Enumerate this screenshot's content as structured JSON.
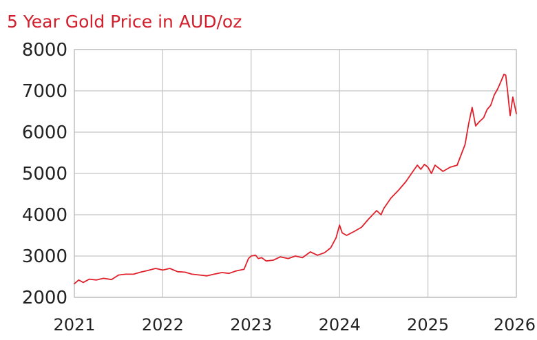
{
  "chart_data": {
    "type": "line",
    "title": "5 Year Gold Price in AUD/oz",
    "title_color": "#d21f2b",
    "line_color": "#e0202a",
    "xlabel": "",
    "ylabel": "",
    "xlim": [
      2021,
      2026
    ],
    "ylim": [
      2000,
      8000
    ],
    "x_ticks": [
      "2021",
      "2022",
      "2023",
      "2024",
      "2025",
      "2026"
    ],
    "y_ticks": [
      "2000",
      "3000",
      "4000",
      "5000",
      "6000",
      "7000",
      "8000"
    ],
    "grid": true,
    "legend": "none",
    "series": [
      {
        "points": [
          [
            2021.0,
            2330
          ],
          [
            2021.05,
            2420
          ],
          [
            2021.1,
            2360
          ],
          [
            2021.17,
            2440
          ],
          [
            2021.25,
            2420
          ],
          [
            2021.33,
            2460
          ],
          [
            2021.42,
            2430
          ],
          [
            2021.5,
            2540
          ],
          [
            2021.58,
            2560
          ],
          [
            2021.67,
            2560
          ],
          [
            2021.75,
            2610
          ],
          [
            2021.83,
            2650
          ],
          [
            2021.92,
            2700
          ],
          [
            2022.0,
            2660
          ],
          [
            2022.08,
            2700
          ],
          [
            2022.17,
            2620
          ],
          [
            2022.25,
            2610
          ],
          [
            2022.33,
            2560
          ],
          [
            2022.42,
            2540
          ],
          [
            2022.5,
            2520
          ],
          [
            2022.58,
            2560
          ],
          [
            2022.67,
            2600
          ],
          [
            2022.75,
            2580
          ],
          [
            2022.83,
            2640
          ],
          [
            2022.92,
            2680
          ],
          [
            2022.97,
            2940
          ],
          [
            2023.0,
            3000
          ],
          [
            2023.05,
            3020
          ],
          [
            2023.08,
            2940
          ],
          [
            2023.12,
            2960
          ],
          [
            2023.17,
            2880
          ],
          [
            2023.25,
            2900
          ],
          [
            2023.33,
            2980
          ],
          [
            2023.42,
            2940
          ],
          [
            2023.5,
            3000
          ],
          [
            2023.58,
            2960
          ],
          [
            2023.67,
            3100
          ],
          [
            2023.75,
            3020
          ],
          [
            2023.83,
            3080
          ],
          [
            2023.9,
            3200
          ],
          [
            2023.96,
            3440
          ],
          [
            2024.0,
            3750
          ],
          [
            2024.03,
            3560
          ],
          [
            2024.08,
            3500
          ],
          [
            2024.17,
            3600
          ],
          [
            2024.25,
            3700
          ],
          [
            2024.33,
            3900
          ],
          [
            2024.42,
            4100
          ],
          [
            2024.47,
            4000
          ],
          [
            2024.5,
            4150
          ],
          [
            2024.58,
            4400
          ],
          [
            2024.67,
            4600
          ],
          [
            2024.75,
            4800
          ],
          [
            2024.83,
            5050
          ],
          [
            2024.88,
            5200
          ],
          [
            2024.92,
            5100
          ],
          [
            2024.96,
            5220
          ],
          [
            2025.0,
            5150
          ],
          [
            2025.04,
            5000
          ],
          [
            2025.08,
            5200
          ],
          [
            2025.17,
            5050
          ],
          [
            2025.25,
            5150
          ],
          [
            2025.33,
            5200
          ],
          [
            2025.42,
            5700
          ],
          [
            2025.46,
            6200
          ],
          [
            2025.5,
            6600
          ],
          [
            2025.54,
            6150
          ],
          [
            2025.58,
            6250
          ],
          [
            2025.63,
            6350
          ],
          [
            2025.67,
            6550
          ],
          [
            2025.71,
            6650
          ],
          [
            2025.75,
            6900
          ],
          [
            2025.79,
            7050
          ],
          [
            2025.83,
            7250
          ],
          [
            2025.86,
            7400
          ],
          [
            2025.88,
            7380
          ],
          [
            2025.9,
            7000
          ],
          [
            2025.93,
            6400
          ],
          [
            2025.96,
            6850
          ],
          [
            2026.0,
            6450
          ]
        ]
      }
    ]
  }
}
